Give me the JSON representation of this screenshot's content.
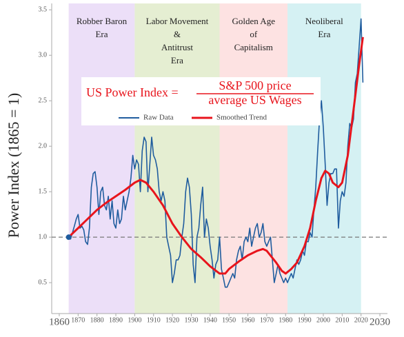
{
  "chart_data": {
    "type": "line",
    "y_label": "Power Index (1865 = 1)",
    "xlim": [
      1856,
      2034
    ],
    "ylim": [
      0.16,
      3.57
    ],
    "xticks": [
      1860,
      1870,
      1880,
      1890,
      1900,
      1910,
      1920,
      1930,
      1940,
      1950,
      1960,
      1970,
      1980,
      1990,
      2000,
      2010,
      2020,
      2030
    ],
    "yticks": [
      0.5,
      {
        "value": 1,
        "label": "1.0"
      },
      1.5,
      {
        "value": 2,
        "label": "2.0"
      },
      2.5,
      {
        "value": 3,
        "label": "3.0"
      },
      3.5
    ],
    "reference_line": 1,
    "eras": [
      {
        "start": 1865,
        "end": 1900,
        "color": "#ecdff8",
        "label": [
          "Robber Baron",
          "Era"
        ]
      },
      {
        "start": 1900,
        "end": 1945,
        "color": "#e5eed2",
        "label": [
          "Labor Movement",
          "&",
          "Antitrust",
          "Era"
        ]
      },
      {
        "start": 1945,
        "end": 1981,
        "color": "#fde2e2",
        "label": [
          "Golden Age",
          "of",
          "Capitalism"
        ]
      },
      {
        "start": 1981,
        "end": 2020,
        "color": "#d5f1f3",
        "label": [
          "Neoliberal",
          "Era"
        ]
      }
    ],
    "formula": {
      "lhs": "US Power Index =",
      "numerator": "S&P 500 price",
      "denominator": "average US Wages"
    },
    "series": [
      {
        "name": "Raw Data",
        "color": "#1f5c9e",
        "x": [
          1865,
          1866,
          1867,
          1868,
          1869,
          1870,
          1871,
          1872,
          1873,
          1874,
          1875,
          1876,
          1877,
          1878,
          1879,
          1880,
          1881,
          1882,
          1883,
          1884,
          1885,
          1886,
          1887,
          1888,
          1889,
          1890,
          1891,
          1892,
          1893,
          1894,
          1895,
          1896,
          1897,
          1898,
          1899,
          1900,
          1901,
          1902,
          1903,
          1904,
          1905,
          1906,
          1907,
          1908,
          1909,
          1910,
          1911,
          1912,
          1913,
          1914,
          1915,
          1916,
          1917,
          1918,
          1919,
          1920,
          1921,
          1922,
          1923,
          1924,
          1925,
          1926,
          1927,
          1928,
          1929,
          1930,
          1931,
          1932,
          1933,
          1934,
          1935,
          1936,
          1937,
          1938,
          1939,
          1940,
          1941,
          1942,
          1943,
          1944,
          1945,
          1946,
          1947,
          1948,
          1949,
          1950,
          1951,
          1952,
          1953,
          1954,
          1955,
          1956,
          1957,
          1958,
          1959,
          1960,
          1961,
          1962,
          1963,
          1964,
          1965,
          1966,
          1967,
          1968,
          1969,
          1970,
          1971,
          1972,
          1973,
          1974,
          1975,
          1976,
          1977,
          1978,
          1979,
          1980,
          1981,
          1982,
          1983,
          1984,
          1985,
          1986,
          1987,
          1988,
          1989,
          1990,
          1991,
          1992,
          1993,
          1994,
          1995,
          1996,
          1997,
          1998,
          1999,
          2000,
          2001,
          2002,
          2003,
          2004,
          2005,
          2006,
          2007,
          2008,
          2009,
          2010,
          2011,
          2012,
          2013,
          2014,
          2015,
          2016,
          2017,
          2018,
          2019,
          2020,
          2021
        ],
        "values": [
          1.0,
          0.98,
          1.05,
          1.12,
          1.2,
          1.25,
          1.1,
          1.12,
          1.08,
          0.95,
          0.92,
          1.1,
          1.55,
          1.7,
          1.72,
          1.55,
          1.25,
          1.5,
          1.55,
          1.35,
          1.3,
          1.45,
          1.2,
          1.4,
          1.15,
          1.1,
          1.3,
          1.15,
          1.2,
          1.45,
          1.3,
          1.4,
          1.5,
          1.65,
          1.9,
          1.75,
          1.85,
          1.8,
          1.5,
          1.95,
          2.1,
          2.05,
          1.5,
          1.8,
          2.1,
          1.9,
          1.85,
          1.75,
          1.5,
          1.4,
          1.5,
          1.4,
          1.0,
          0.9,
          0.8,
          0.5,
          0.6,
          0.75,
          0.75,
          0.8,
          1.0,
          1.15,
          1.5,
          1.65,
          1.55,
          1.25,
          0.7,
          0.5,
          1.0,
          1.1,
          1.35,
          1.55,
          1.0,
          1.2,
          1.1,
          0.9,
          0.75,
          0.55,
          0.7,
          0.75,
          1.0,
          0.65,
          0.55,
          0.45,
          0.45,
          0.5,
          0.55,
          0.6,
          0.55,
          0.75,
          0.85,
          0.9,
          0.75,
          0.95,
          1.0,
          0.95,
          1.1,
          0.9,
          1.0,
          1.1,
          1.15,
          1.0,
          1.05,
          1.15,
          0.95,
          0.9,
          0.95,
          1.0,
          0.75,
          0.5,
          0.6,
          0.7,
          0.6,
          0.55,
          0.5,
          0.55,
          0.5,
          0.55,
          0.6,
          0.55,
          0.65,
          0.75,
          0.7,
          0.75,
          0.85,
          0.8,
          0.95,
          0.95,
          1.05,
          1.0,
          1.3,
          1.55,
          1.95,
          2.3,
          2.5,
          2.2,
          1.8,
          1.35,
          1.6,
          1.7,
          1.7,
          1.75,
          1.75,
          1.1,
          1.4,
          1.5,
          1.45,
          1.6,
          2.0,
          2.25,
          2.2,
          2.3,
          2.7,
          2.8,
          3.1,
          3.4,
          2.7
        ]
      },
      {
        "name": "Smoothed Trend",
        "color": "#e8141c",
        "x": [
          1865,
          1870,
          1875,
          1880,
          1885,
          1890,
          1895,
          1900,
          1903,
          1906,
          1910,
          1915,
          1920,
          1925,
          1930,
          1935,
          1940,
          1945,
          1948,
          1950,
          1955,
          1960,
          1965,
          1968,
          1970,
          1975,
          1978,
          1980,
          1983,
          1986,
          1990,
          1993,
          1996,
          1999,
          2001,
          2003,
          2005,
          2008,
          2010,
          2013,
          2016,
          2019,
          2021
        ],
        "values": [
          1.0,
          1.1,
          1.2,
          1.3,
          1.38,
          1.45,
          1.52,
          1.6,
          1.63,
          1.6,
          1.5,
          1.35,
          1.15,
          1.0,
          0.87,
          0.78,
          0.68,
          0.6,
          0.6,
          0.65,
          0.73,
          0.8,
          0.85,
          0.87,
          0.85,
          0.72,
          0.63,
          0.6,
          0.65,
          0.72,
          0.9,
          1.1,
          1.4,
          1.65,
          1.73,
          1.7,
          1.6,
          1.55,
          1.6,
          1.9,
          2.4,
          2.9,
          3.2
        ]
      }
    ]
  }
}
